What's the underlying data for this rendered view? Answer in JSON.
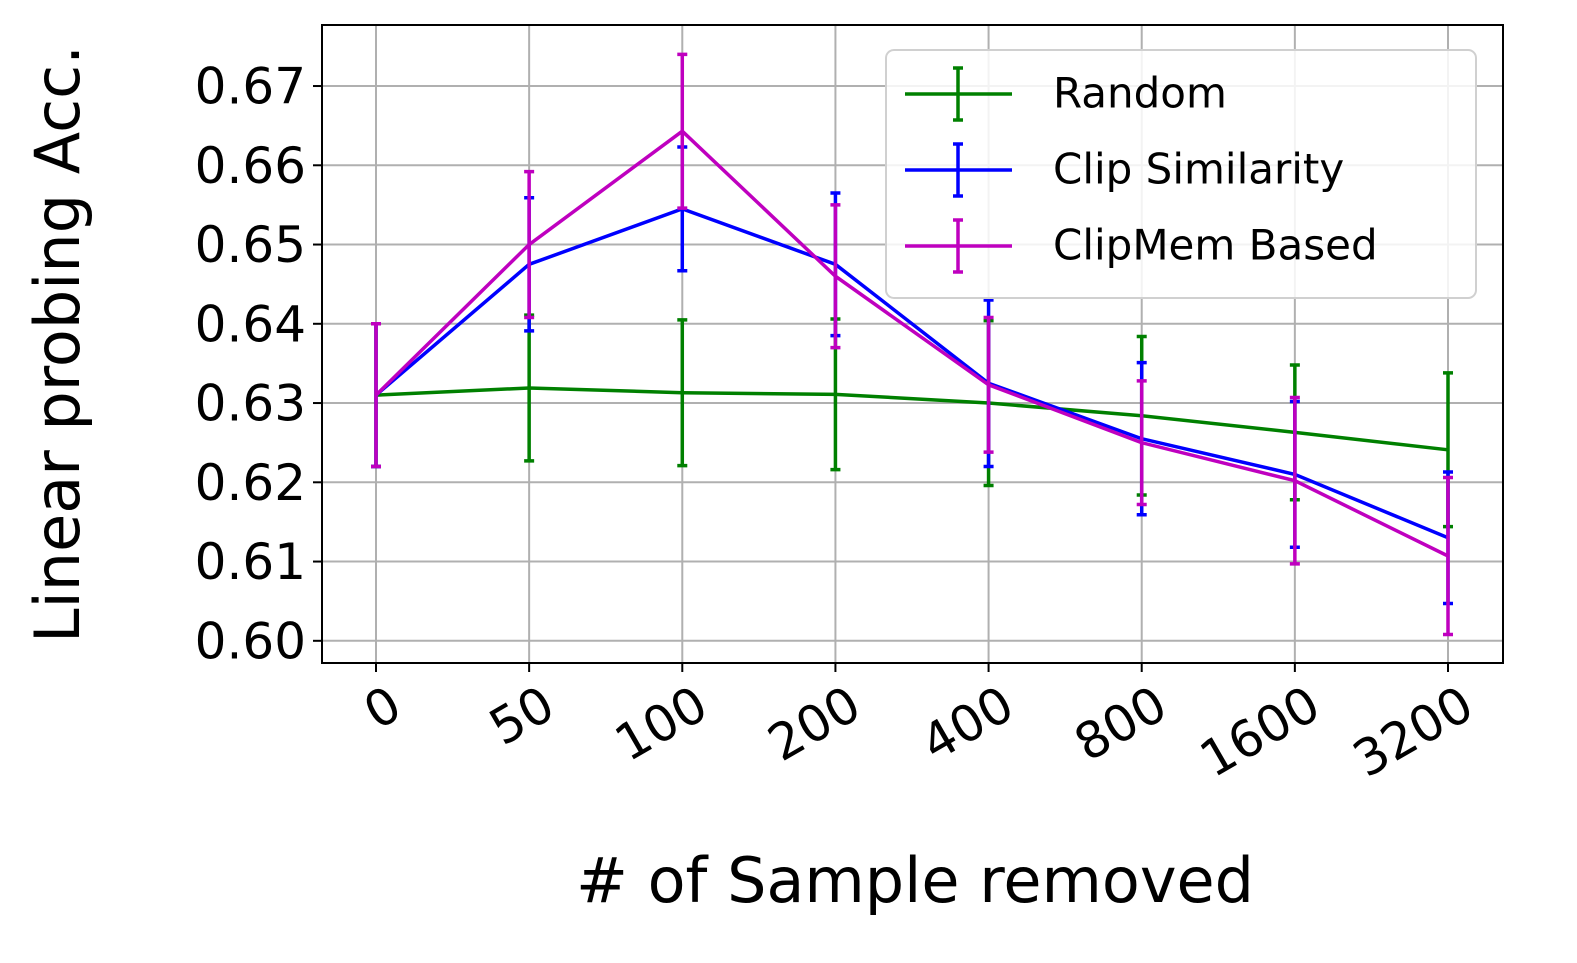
{
  "chart_data": {
    "type": "line",
    "x_label": "# of Sample removed",
    "y_label": "Linear probing Acc.",
    "categories": [
      "0",
      "50",
      "100",
      "200",
      "400",
      "800",
      "1600",
      "3200"
    ],
    "ylim": [
      0.5972,
      0.6777
    ],
    "yticks": [
      {
        "value": 0.6,
        "label": "0.60"
      },
      0.61,
      0.62,
      0.63,
      0.64,
      0.65,
      0.66,
      0.67
    ],
    "grid": true,
    "legend": "upper right",
    "series": [
      {
        "name": "Random",
        "color": "#008000",
        "values": [
          0.631,
          0.6319,
          0.6313,
          0.6311,
          0.63,
          0.6284,
          0.6263,
          0.6241
        ],
        "errors": [
          0.009,
          0.0092,
          0.0092,
          0.0095,
          0.0104,
          0.01,
          0.0085,
          0.0097
        ]
      },
      {
        "name": "Clip Similarity",
        "color": "#0000ff",
        "values": [
          0.631,
          0.6475,
          0.6545,
          0.6475,
          0.6325,
          0.6255,
          0.621,
          0.613
        ],
        "errors": [
          0.009,
          0.0084,
          0.0078,
          0.009,
          0.0105,
          0.0096,
          0.0092,
          0.0083
        ]
      },
      {
        "name": "ClipMem Based",
        "color": "#bf00bf",
        "values": [
          0.631,
          0.65,
          0.6643,
          0.646,
          0.6323,
          0.625,
          0.6202,
          0.6107
        ],
        "errors": [
          0.009,
          0.0092,
          0.0097,
          0.009,
          0.0085,
          0.0078,
          0.0105,
          0.0099
        ]
      }
    ]
  }
}
